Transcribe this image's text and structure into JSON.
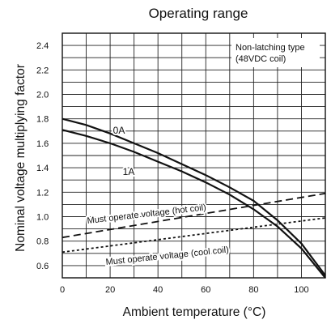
{
  "chart_data": {
    "type": "line",
    "title": "Operating range",
    "xlabel": "Ambient temperature (°C)",
    "ylabel": "Nominal voltage multiplying factor",
    "xlim": [
      0,
      110
    ],
    "ylim": [
      0.5,
      2.5
    ],
    "xticks": [
      0,
      20,
      40,
      60,
      80,
      100
    ],
    "yticks": [
      "0.6",
      "0.8",
      "1.0",
      "1.2",
      "1.4",
      "1.6",
      "1.8",
      "2.0",
      "2.2",
      "2.4"
    ],
    "grid": true,
    "note": [
      "Non-latching type",
      "(48VDC coil)"
    ],
    "series": [
      {
        "name": "0A",
        "style": "solid",
        "x": [
          0,
          10,
          20,
          30,
          40,
          50,
          60,
          70,
          80,
          90,
          100,
          110
        ],
        "y": [
          1.8,
          1.75,
          1.68,
          1.6,
          1.52,
          1.43,
          1.34,
          1.24,
          1.13,
          0.97,
          0.78,
          0.52
        ]
      },
      {
        "name": "1A",
        "style": "solid",
        "x": [
          0,
          10,
          20,
          30,
          40,
          50,
          60,
          70,
          80,
          90,
          100,
          110
        ],
        "y": [
          1.71,
          1.66,
          1.6,
          1.53,
          1.45,
          1.37,
          1.28,
          1.18,
          1.06,
          0.92,
          0.74,
          0.5
        ]
      },
      {
        "name": "Must operate voltage (hot coil)",
        "style": "dashed",
        "x": [
          0,
          110
        ],
        "y": [
          0.83,
          1.19
        ]
      },
      {
        "name": "Must operate voltage (cool coil)",
        "style": "dotted",
        "x": [
          0,
          110
        ],
        "y": [
          0.71,
          0.99
        ]
      }
    ]
  }
}
